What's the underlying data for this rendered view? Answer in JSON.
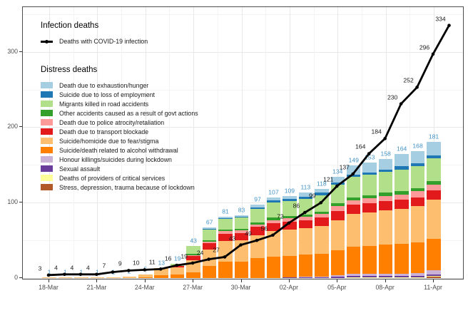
{
  "legend": {
    "infection_title": "Infection deaths",
    "infection_key_label": "Deaths with COVID-19 infection",
    "distress_title": "Distress deaths"
  },
  "chart_data": {
    "type": "bar",
    "subtype": "stacked-bars-with-cumulative-line",
    "title": "",
    "xlabel": "",
    "ylabel": "",
    "x_tick_labels": [
      "18-Mar",
      "21-Mar",
      "24-Mar",
      "27-Mar",
      "30-Mar",
      "02-Apr",
      "05-Apr",
      "08-Apr",
      "11-Apr"
    ],
    "y_ticks": [
      0,
      100,
      200,
      300
    ],
    "y_minor_ticks": [
      50,
      150,
      250,
      350
    ],
    "ylim": [
      0,
      362
    ],
    "grid": "on",
    "legend_position": "inside-top-left",
    "label_colors": {
      "bar_total": "#4292c6",
      "line_label": "#1a1a1a"
    },
    "line": {
      "name": "Deaths with COVID-19 infection",
      "color": "#000000",
      "dates": [
        "18-Mar",
        "19-Mar",
        "20-Mar",
        "21-Mar",
        "22-Mar",
        "23-Mar",
        "24-Mar",
        "25-Mar",
        "26-Mar",
        "27-Mar",
        "28-Mar",
        "29-Mar",
        "30-Mar",
        "31-Mar",
        "01-Apr",
        "02-Apr",
        "03-Apr",
        "04-Apr",
        "05-Apr",
        "06-Apr",
        "07-Apr",
        "08-Apr",
        "09-Apr",
        "10-Apr",
        "11-Apr",
        "12-Apr"
      ],
      "values": [
        3,
        4,
        4,
        4,
        7,
        9,
        10,
        11,
        16,
        19,
        24,
        27,
        43,
        49,
        56,
        72,
        86,
        99,
        121,
        137,
        164,
        184,
        230,
        252,
        296,
        334
      ]
    },
    "bars": {
      "dates": [
        "18-Mar",
        "19-Mar",
        "20-Mar",
        "21-Mar",
        "22-Mar",
        "23-Mar",
        "24-Mar",
        "25-Mar",
        "26-Mar",
        "27-Mar",
        "28-Mar",
        "29-Mar",
        "30-Mar",
        "31-Mar",
        "01-Apr",
        "02-Apr",
        "03-Apr",
        "04-Apr",
        "05-Apr",
        "06-Apr",
        "07-Apr",
        "08-Apr",
        "09-Apr",
        "10-Apr",
        "11-Apr"
      ],
      "totals": [
        1,
        1,
        1,
        1,
        1,
        2,
        5,
        13,
        19,
        43,
        67,
        81,
        83,
        97,
        107,
        109,
        113,
        118,
        134,
        149,
        153,
        158,
        164,
        168,
        181
      ],
      "series": [
        {
          "name": "Stress, depression, trauma because of lockdown",
          "color": "#b15928",
          "values": [
            0,
            0,
            0,
            0,
            0,
            0,
            0,
            0,
            0,
            0,
            0,
            0,
            0,
            0,
            0,
            0,
            0,
            0,
            0,
            0,
            0,
            0,
            0,
            0,
            2
          ]
        },
        {
          "name": "Deaths of providers of critical services",
          "color": "#ffff99",
          "values": [
            0,
            0,
            0,
            0,
            0,
            0,
            0,
            0,
            0,
            0,
            0,
            0,
            0,
            0,
            0,
            0,
            0,
            0,
            0,
            1,
            1,
            1,
            1,
            1,
            1
          ]
        },
        {
          "name": "Sexual assault",
          "color": "#6a3d9a",
          "values": [
            0,
            0,
            0,
            0,
            0,
            0,
            0,
            0,
            0,
            0,
            0,
            0,
            0,
            0,
            0,
            1,
            1,
            1,
            2,
            2,
            2,
            2,
            2,
            2,
            2
          ]
        },
        {
          "name": "Honour killings/suicides during lockdown",
          "color": "#cab2d6",
          "values": [
            0,
            0,
            0,
            0,
            0,
            0,
            0,
            0,
            0,
            0,
            0,
            0,
            0,
            0,
            0,
            0,
            1,
            1,
            2,
            3,
            3,
            3,
            3,
            4,
            5
          ]
        },
        {
          "name": "Suicide/death related to alcohol withdrawal",
          "color": "#ff7f00",
          "values": [
            0,
            0,
            0,
            0,
            0,
            0,
            1,
            4,
            5,
            8,
            16,
            22,
            22,
            26,
            28,
            28,
            29,
            30,
            33,
            36,
            37,
            38,
            39,
            40,
            42
          ]
        },
        {
          "name": "Suicide/homicide due to fear/stigma",
          "color": "#fdbf6f",
          "values": [
            1,
            1,
            1,
            1,
            1,
            2,
            4,
            9,
            9,
            16,
            22,
            27,
            28,
            31,
            34,
            35,
            35,
            37,
            40,
            43,
            44,
            46,
            47,
            48,
            52
          ]
        },
        {
          "name": "Death due to transport blockade",
          "color": "#e31a1c",
          "values": [
            0,
            0,
            0,
            0,
            0,
            0,
            0,
            0,
            2,
            5,
            8,
            10,
            10,
            11,
            11,
            11,
            11,
            11,
            12,
            12,
            12,
            12,
            12,
            12,
            12
          ]
        },
        {
          "name": "Death due to police atrocity/retaliation",
          "color": "#fb9a99",
          "values": [
            0,
            0,
            0,
            0,
            0,
            0,
            0,
            0,
            0,
            1,
            2,
            3,
            3,
            3,
            4,
            4,
            4,
            5,
            6,
            6,
            7,
            7,
            7,
            8,
            8
          ]
        },
        {
          "name": "Other accidents caused as a result of govt actions",
          "color": "#33a02c",
          "values": [
            0,
            0,
            0,
            0,
            0,
            0,
            0,
            0,
            0,
            2,
            2,
            2,
            2,
            3,
            3,
            3,
            3,
            3,
            4,
            4,
            4,
            4,
            4,
            4,
            5
          ]
        },
        {
          "name": "Migrants killed in road accidents",
          "color": "#b2df8a",
          "values": [
            0,
            0,
            0,
            0,
            0,
            0,
            0,
            0,
            3,
            11,
            14,
            14,
            15,
            18,
            20,
            20,
            21,
            22,
            25,
            27,
            27,
            28,
            29,
            29,
            30
          ]
        },
        {
          "name": "Suicide due to loss of employment",
          "color": "#1f78b4",
          "values": [
            0,
            0,
            0,
            0,
            0,
            0,
            0,
            0,
            0,
            0,
            1,
            1,
            1,
            2,
            3,
            3,
            3,
            3,
            3,
            3,
            3,
            3,
            4,
            4,
            4
          ]
        },
        {
          "name": "Death due to exhaustion/hunger",
          "color": "#a6cee3",
          "values": [
            0,
            0,
            0,
            0,
            0,
            0,
            0,
            0,
            0,
            0,
            2,
            2,
            2,
            3,
            4,
            4,
            5,
            5,
            7,
            12,
            13,
            14,
            16,
            16,
            18
          ]
        }
      ],
      "legend_order_top_to_bottom": [
        "Death due to exhaustion/hunger",
        "Suicide due to loss of employment",
        "Migrants killed in road accidents",
        "Other accidents caused as a result of govt actions",
        "Death due to police atrocity/retaliation",
        "Death due to transport blockade",
        "Suicide/homicide due to fear/stigma",
        "Suicide/death related to alcohol withdrawal",
        "Honour killings/suicides during lockdown",
        "Sexual assault",
        "Deaths of providers of critical services",
        "Stress, depression, trauma because of lockdown"
      ]
    }
  }
}
